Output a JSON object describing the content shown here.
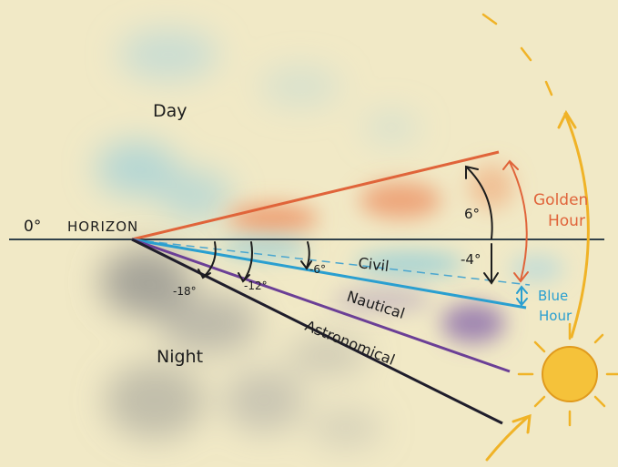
{
  "labels": {
    "zero_degrees": "0°",
    "horizon": "HORIZON",
    "day": "Day",
    "night": "Night",
    "golden_hour_line1": "Golden",
    "golden_hour_line2": "Hour",
    "blue_hour_line1": "Blue",
    "blue_hour_line2": "Hour",
    "civil": "Civil",
    "nautical": "Nautical",
    "astronomical": "Astronomical",
    "angle_plus6": "6°",
    "angle_minus4": "-4°",
    "angle_minus6": "-6°",
    "angle_minus12": "-12°",
    "angle_minus18": "-18°"
  },
  "colors": {
    "background": "#f1e9c6",
    "golden": "#e0643a",
    "blue": "#2a9fd0",
    "nautical": "#6b3f96",
    "astronomical": "#1f1d2b",
    "horizon": "#31414a",
    "sun": "#f0b327",
    "ink": "#1d1d1d"
  },
  "icons": {
    "sun": "sun-icon"
  }
}
